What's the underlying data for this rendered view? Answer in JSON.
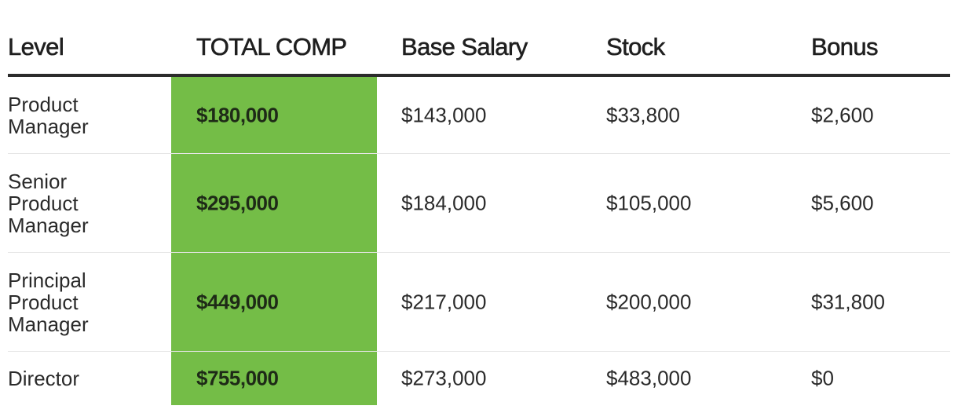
{
  "table": {
    "headers": {
      "level": "Level",
      "total_comp": "TOTAL COMP",
      "base_salary": "Base Salary",
      "stock": "Stock",
      "bonus": "Bonus"
    },
    "rows": [
      {
        "level": "Product Manager",
        "total_comp": "$180,000",
        "base_salary": "$143,000",
        "stock": "$33,800",
        "bonus": "$2,600"
      },
      {
        "level": "Senior Product Manager",
        "total_comp": "$295,000",
        "base_salary": "$184,000",
        "stock": "$105,000",
        "bonus": "$5,600"
      },
      {
        "level": "Principal Product Manager",
        "total_comp": "$449,000",
        "base_salary": "$217,000",
        "stock": "$200,000",
        "bonus": "$31,800"
      },
      {
        "level": "Director",
        "total_comp": "$755,000",
        "base_salary": "$273,000",
        "stock": "$483,000",
        "bonus": "$0"
      }
    ]
  },
  "colors": {
    "total_comp_highlight": "#74bd47",
    "header_rule": "#2b2b2b",
    "row_divider": "#e6e6e6"
  }
}
